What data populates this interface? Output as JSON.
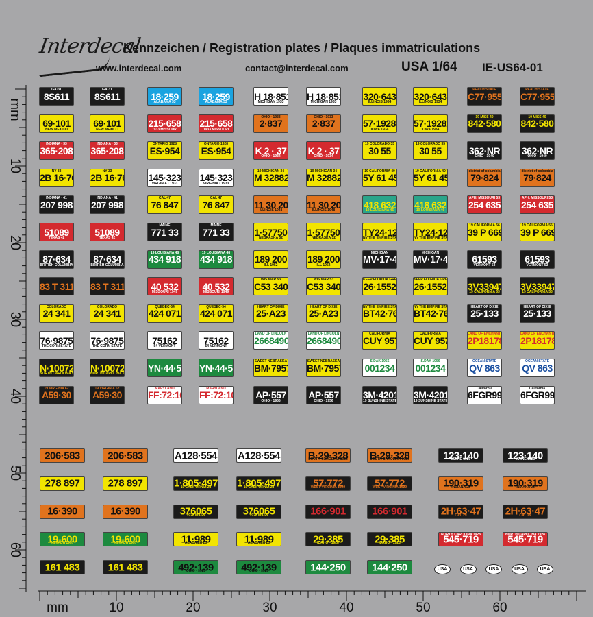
{
  "header": {
    "logo": "Interdecal",
    "title": "Kennzeichen / Registration plates / Plaques immatriculations",
    "website": "www.interdecal.com",
    "email": "contact@interdecal.com",
    "scale": "USA  1/64",
    "ref": "IE-US64-01"
  },
  "rulers": {
    "unit": "mm",
    "vertical_labels": [
      "mm",
      "10",
      "20",
      "30",
      "40",
      "50",
      "60"
    ],
    "horizontal_labels": [
      "mm",
      "10",
      "20",
      "30",
      "40",
      "50",
      "60"
    ]
  },
  "colors": {
    "background": "#a7a7a9",
    "black": "#1b1b1b",
    "yellow": "#f2e400",
    "orange": "#e0731e",
    "red": "#d42a2f",
    "blue": "#1aa3e0",
    "green": "#1d8a3f",
    "white": "#ffffff"
  },
  "plate_columns": [
    57,
    131,
    215,
    290,
    370,
    447,
    529,
    603,
    682,
    759
  ],
  "plate_rows": [
    [
      {
        "n": "8S611",
        "t": "GA·31",
        "bg": "#1b1b1b",
        "fg": "#ffffff"
      },
      {
        "n": "18·259",
        "b": "ALABAMA 33",
        "bg": "#1aa3e0",
        "fg": "#ffffff"
      },
      {
        "n": "H 18·851",
        "b": "MICHIGAN 1933",
        "bg": "#ffffff",
        "fg": "#111111"
      },
      {
        "n": "320·643",
        "b": "ILLINOIS 1934",
        "bg": "#f2e400",
        "fg": "#111111"
      },
      {
        "n": "C77·955",
        "t": "PEACH STATE",
        "bg": "#1b1b1b",
        "fg": "#e0731e"
      }
    ],
    [
      {
        "n": "69·101",
        "b": "NEW MEXICO",
        "bg": "#f2e400",
        "fg": "#111111"
      },
      {
        "n": "215·658",
        "b": "1933 MISSOURI",
        "bg": "#d42a2f",
        "fg": "#ffffff"
      },
      {
        "n": "2·837",
        "t": "OHIO · 1933",
        "bg": "#e0731e",
        "fg": "#111111"
      },
      {
        "n": "57·19281",
        "b": "IOWA 1934",
        "bg": "#f2e400",
        "fg": "#111111"
      },
      {
        "n": "842·580",
        "t": "19 MISS 40",
        "bg": "#1b1b1b",
        "fg": "#f2e400"
      }
    ],
    [
      {
        "n": "365·208",
        "t": "INDIANA · 33",
        "bg": "#d42a2f",
        "fg": "#ffffff"
      },
      {
        "n": "ES·954",
        "t": "ONTARIO 1928",
        "bg": "#f2e400",
        "fg": "#111111"
      },
      {
        "n": "K 2 · 37",
        "b": "OHIO · 1934",
        "bg": "#d42a2f",
        "fg": "#ffffff"
      },
      {
        "n": "30 55",
        "t": "19 COLORADO 35",
        "bg": "#f2e400",
        "fg": "#111111"
      },
      {
        "n": "362·NR",
        "b": "OHIO · 1940",
        "bg": "#1b1b1b",
        "fg": "#ffffff"
      }
    ],
    [
      {
        "n": "2B 16·76",
        "t": "NY 33",
        "bg": "#f2e400",
        "fg": "#111111"
      },
      {
        "n": "145·323",
        "b": "VIRGINIA · 1933",
        "bg": "#ffffff",
        "fg": "#111111"
      },
      {
        "n": "M 32882",
        "t": "19 MICHIGAN 34",
        "bg": "#f2e400",
        "fg": "#111111"
      },
      {
        "n": "5Y 61 45",
        "t": "19 CALIFORNIA 40",
        "bg": "#f2e400",
        "fg": "#111111"
      },
      {
        "n": "79·824",
        "t": "district of columbia",
        "bg": "#e0731e",
        "fg": "#111111"
      }
    ],
    [
      {
        "n": "207 998",
        "t": "INDIANA · 41",
        "bg": "#1b1b1b",
        "fg": "#ffffff"
      },
      {
        "n": "76 847",
        "t": "CAL 47",
        "bg": "#f2e400",
        "fg": "#111111"
      },
      {
        "n": "11 30 201",
        "b": "ILLINOIS 1948",
        "bg": "#e0731e",
        "fg": "#111111"
      },
      {
        "n": "418 632",
        "b": "19 LOUISIANA 46",
        "bg": "#2aa58a",
        "fg": "#f2e400"
      },
      {
        "n": "254 635",
        "t": "APH. MISSOURI 53",
        "bg": "#d42a2f",
        "fg": "#ffffff"
      }
    ],
    [
      {
        "n": "51089",
        "b": "TEXAS 42",
        "bg": "#d42a2f",
        "fg": "#ffffff"
      },
      {
        "n": "771 33",
        "t": "MAINE",
        "bg": "#1b1b1b",
        "fg": "#ffffff"
      },
      {
        "n": "1·57750",
        "b": "NEBRASKA 52",
        "bg": "#f2e400",
        "fg": "#111111"
      },
      {
        "n": "TY24·12",
        "b": "NY THE EMPIRE STATE 51",
        "bg": "#f2e400",
        "fg": "#111111"
      },
      {
        "n": "39 P 669",
        "t": "19 CALIFORNIA 56",
        "bg": "#f2e400",
        "fg": "#111111"
      }
    ],
    [
      {
        "n": "87·634",
        "b": "BRITISH COLUMBIA",
        "bg": "#1b1b1b",
        "fg": "#ffffff"
      },
      {
        "n": "434 918",
        "t": "19 LOUISIANA 48",
        "bg": "#1d8a3f",
        "fg": "#ffffff"
      },
      {
        "n": "189 200",
        "b": "ILL 1952",
        "bg": "#f2e400",
        "fg": "#111111"
      },
      {
        "n": "MV·17·49",
        "t": "MICHIGAN",
        "bg": "#1b1b1b",
        "fg": "#ffffff"
      },
      {
        "n": "61593",
        "b": "VERMONT 53",
        "bg": "#1b1b1b",
        "fg": "#ffffff"
      }
    ],
    [
      {
        "n": "83 T 311",
        "b": "",
        "bg": "#1b1b1b",
        "fg": "#e0731e"
      },
      {
        "n": "40 532",
        "b": "MISSOURI 1949",
        "bg": "#d42a2f",
        "fg": "#ffffff"
      },
      {
        "n": "C53 340",
        "t": "WIS MAR 53",
        "bg": "#f2e400",
        "fg": "#111111"
      },
      {
        "n": "26·1552",
        "t": "KEEP FLORIDA GREEN",
        "bg": "#f2e400",
        "fg": "#111111"
      },
      {
        "n": "3V33947",
        "b": "19 CALIFORNIA 53",
        "bg": "#1b1b1b",
        "fg": "#f2e400"
      }
    ],
    [
      {
        "n": "24 341",
        "t": "COLORADO",
        "bg": "#f2e400",
        "fg": "#111111"
      },
      {
        "n": "424 071",
        "t": "QUEBEC·54",
        "bg": "#f2e400",
        "fg": "#111111"
      },
      {
        "n": "25·A23",
        "t": "HEART OF DIXIE",
        "bg": "#f2e400",
        "fg": "#111111"
      },
      {
        "n": "BT42·76",
        "t": "NY THE EMPIRE STATE 56",
        "bg": "#f2e400",
        "fg": "#111111"
      },
      {
        "n": "25·133",
        "t": "HEART OF DIXIE",
        "bg": "#1b1b1b",
        "fg": "#ffffff"
      }
    ],
    [
      {
        "n": "76·9875",
        "b": "THE CORN STATE",
        "bg": "#ffffff",
        "fg": "#111111"
      },
      {
        "n": "75162",
        "b": "54 VERMONT",
        "bg": "#ffffff",
        "fg": "#111111"
      },
      {
        "n": "2668490",
        "t": "LAND OF LINCOLN",
        "bg": "#ffffff",
        "fg": "#1d8a3f"
      },
      {
        "n": "CUY 957",
        "t": "CALIFORNIA",
        "bg": "#f2e400",
        "fg": "#111111"
      },
      {
        "n": "2P18178",
        "t": "LAND OF ENCHANTMENT",
        "bg": "#f2e400",
        "fg": "#d42a2f"
      }
    ],
    [
      {
        "n": "N·10072",
        "b": "NORTH CAROLINA 53",
        "bg": "#1b1b1b",
        "fg": "#f2e400"
      },
      {
        "n": "YN·44·58",
        "b": "",
        "bg": "#1d8a3f",
        "fg": "#ffffff"
      },
      {
        "n": "BM·7957",
        "t": "SWEET NEBRASKA",
        "bg": "#f2e400",
        "fg": "#111111"
      },
      {
        "n": "001234",
        "t": "S.DAK 1956",
        "bg": "#ffffff",
        "fg": "#1d8a3f"
      },
      {
        "n": "QV 863",
        "t": "OCEAN STATE",
        "bg": "#ffffff",
        "fg": "#1a4fa0"
      }
    ],
    [
      {
        "n": "A59·30",
        "t": "19 VIRGINIA 62",
        "bg": "#1b1b1b",
        "fg": "#e0731e"
      },
      {
        "n": "FF:72:10",
        "t": "MARYLAND",
        "bg": "#ffffff",
        "fg": "#d42a2f"
      },
      {
        "n": "AP·557",
        "b": "OHIO · 1956",
        "bg": "#1b1b1b",
        "fg": "#ffffff"
      },
      {
        "n": "3M·4201",
        "b": "19 SUNSHINE STATE 55",
        "bg": "#1b1b1b",
        "fg": "#ffffff"
      },
      {
        "n": "6FGR999",
        "t": "California",
        "bg": "#ffffff",
        "fg": "#111111"
      }
    ]
  ],
  "wide_columns": [
    58,
    150,
    253,
    345,
    446,
    536,
    640,
    734
  ],
  "wide_rows": [
    [
      {
        "n": "206·583",
        "b": "",
        "bg": "#e0731e",
        "fg": "#111111"
      },
      {
        "n": "A128·554",
        "b": "",
        "bg": "#ffffff",
        "fg": "#111111"
      },
      {
        "n": "B·29·328",
        "b": "SOUTH CAROLINA 1926",
        "bg": "#e0731e",
        "fg": "#111111"
      },
      {
        "n": "123·140",
        "b": "MAINE 1929",
        "bg": "#1b1b1b",
        "fg": "#ffffff"
      }
    ],
    [
      {
        "n": "278 897",
        "b": "",
        "bg": "#f2e400",
        "fg": "#111111"
      },
      {
        "n": "1·805·497",
        "b": "19 CALIFORNIA 28",
        "bg": "#1b1b1b",
        "fg": "#f2e400"
      },
      {
        "n": "57·772",
        "b": "WEST VIRGINIA 1929",
        "bg": "#1b1b1b",
        "fg": "#e0731e"
      },
      {
        "n": "190·319",
        "b": "INDIANA 28",
        "bg": "#e0731e",
        "fg": "#111111"
      }
    ],
    [
      {
        "n": "16·390",
        "b": "",
        "bg": "#e0731e",
        "fg": "#111111"
      },
      {
        "n": "376065",
        "b": "1928 MASS",
        "bg": "#1b1b1b",
        "fg": "#f2e400"
      },
      {
        "n": "166·901",
        "b": "",
        "bg": "#1b1b1b",
        "fg": "#d42a2f"
      },
      {
        "n": "2H·63·47",
        "b": "CAL 29",
        "bg": "#1b1b1b",
        "fg": "#e0731e"
      }
    ],
    [
      {
        "n": "19-600",
        "b": "NEVADA 1937",
        "bg": "#1d8a3f",
        "fg": "#f2e400"
      },
      {
        "n": "11·989",
        "b": "ALABAMA 28",
        "bg": "#f2e400",
        "fg": "#111111"
      },
      {
        "n": "29·385",
        "b": "IDAHO · 1928",
        "bg": "#1b1b1b",
        "fg": "#f2e400"
      },
      {
        "n": "545·719",
        "t": "NORTH CAROLINA 1928",
        "bg": "#d42a2f",
        "fg": "#ffffff"
      }
    ],
    [
      {
        "n": "161 483",
        "b": "",
        "bg": "#1b1b1b",
        "fg": "#f2e400"
      },
      {
        "n": "492·139",
        "b": "OHIO · 1928",
        "bg": "#1d8a3f",
        "fg": "#111111"
      },
      {
        "n": "144·250",
        "b": "",
        "bg": "#1d8a3f",
        "fg": "#ffffff"
      }
    ]
  ],
  "usa_badges": [
    "USA",
    "USA",
    "USA",
    "USA",
    "USA"
  ]
}
